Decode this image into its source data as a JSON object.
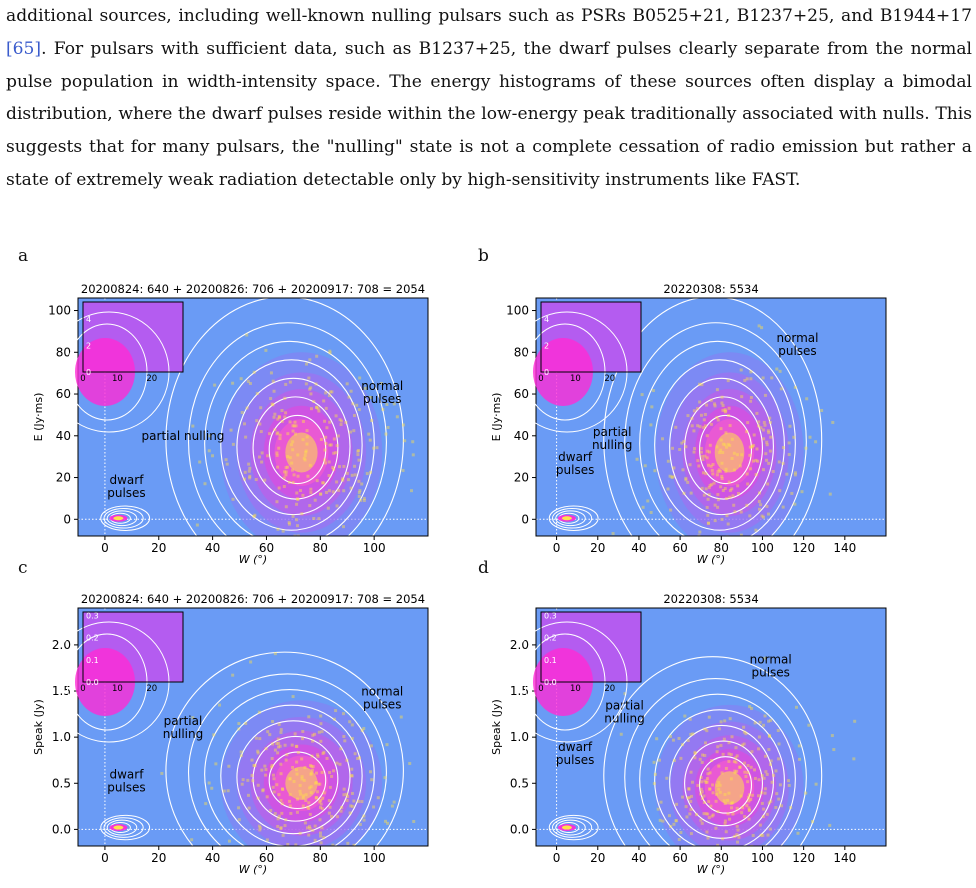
{
  "paragraph": {
    "lines": [
      "additional sources, including well-known nulling pulsars such as PSRs B0525+21, B1237+25, and B1944+17",
      "|. For pulsars with sufficient data, such as B1237+25, the dwarf pulses clearly separate from the normal",
      "pulse population in width-intensity space. The energy histograms of these sources often display a bimodal",
      "distribution, where the dwarf pulses reside within the low-energy peak traditionally associated with nulls. This",
      "suggests that for many pulsars, the \"nulling\" state is not a complete cessation of radio emission but rather a",
      "state of extremely weak radiation detectable only by high-sensitivity instruments like FAST."
    ],
    "citation": "[65]"
  },
  "colors": {
    "background": "#6a9bf5",
    "contour": "#ffffff",
    "hot": "#ff2bd6",
    "core": "#ffe14a",
    "citation": "#3b5ccc"
  },
  "chart_data": [
    {
      "panel": "a",
      "type": "scatter",
      "title": "20200824: 640 + 20200826: 706 + 20200917: 708 = 2054",
      "xlabel": "W (°)",
      "ylabel": "E (Jy·ms)",
      "xlim": [
        -10,
        120
      ],
      "ylim": [
        -8,
        106
      ],
      "xticks": [
        0,
        20,
        40,
        60,
        80,
        100
      ],
      "yticks": [
        0,
        20,
        40,
        60,
        80,
        100
      ],
      "annotations": [
        {
          "text": "normal\npulses",
          "x": 103,
          "y": 62
        },
        {
          "text": "partial nulling",
          "x": 29,
          "y": 38
        },
        {
          "text": "dwarf\npulses",
          "x": 8,
          "y": 17
        }
      ],
      "clusters": [
        {
          "name": "",
          "cx": 73,
          "cy": 32,
          "sx": 10,
          "sy": 16
        },
        {
          "name": "",
          "cx": 5,
          "cy": 0.5,
          "sx": 4,
          "sy": 1.5
        }
      ],
      "inset": {
        "xlim": [
          0,
          25
        ],
        "ylim": [
          0,
          5
        ],
        "xticks": [
          0,
          10,
          20
        ],
        "yticks": [
          0,
          2,
          4
        ]
      }
    },
    {
      "panel": "b",
      "type": "scatter",
      "title": "20220308: 5534",
      "xlabel": "W (°)",
      "ylabel": "E (Jy·ms)",
      "xlim": [
        -10,
        160
      ],
      "ylim": [
        -8,
        106
      ],
      "xticks": [
        0,
        20,
        40,
        60,
        80,
        100,
        120,
        140
      ],
      "yticks": [
        0,
        20,
        40,
        60,
        80,
        100
      ],
      "annotations": [
        {
          "text": "normal\npulses",
          "x": 117,
          "y": 85
        },
        {
          "text": "partial\nnulling",
          "x": 27,
          "y": 40
        },
        {
          "text": "dwarf\npulses",
          "x": 9,
          "y": 28
        }
      ],
      "clusters": [
        {
          "name": "",
          "cx": 84,
          "cy": 32,
          "sx": 12,
          "sy": 16
        },
        {
          "name": "",
          "cx": 5,
          "cy": 0.5,
          "sx": 4,
          "sy": 1.5
        }
      ],
      "inset": {
        "xlim": [
          0,
          25
        ],
        "ylim": [
          0,
          5
        ],
        "xticks": [
          0,
          10,
          20
        ],
        "yticks": [
          0,
          2,
          4
        ]
      }
    },
    {
      "panel": "c",
      "type": "scatter",
      "title": "20200824: 640 + 20200826: 706 + 20200917: 708 = 2054",
      "xlabel": "W (°)",
      "ylabel": "Speak (Jy)",
      "xlim": [
        -10,
        120
      ],
      "ylim": [
        -0.18,
        2.4
      ],
      "xticks": [
        0,
        20,
        40,
        60,
        80,
        100
      ],
      "yticks": [
        0.0,
        0.5,
        1.0,
        1.5,
        2.0
      ],
      "annotations": [
        {
          "text": "normal\npulses",
          "x": 103,
          "y": 1.45
        },
        {
          "text": "partial\nnulling",
          "x": 29,
          "y": 1.13
        },
        {
          "text": "dwarf\npulses",
          "x": 8,
          "y": 0.55
        }
      ],
      "clusters": [
        {
          "name": "",
          "cx": 73,
          "cy": 0.5,
          "sx": 10,
          "sy": 0.3
        },
        {
          "name": "",
          "cx": 5,
          "cy": 0.02,
          "sx": 4,
          "sy": 0.03
        }
      ],
      "inset": {
        "xlim": [
          0,
          25
        ],
        "ylim": [
          0,
          0.3
        ],
        "xticks": [
          0,
          10,
          20
        ],
        "yticks": [
          0.0,
          0.1,
          0.2,
          0.3
        ]
      }
    },
    {
      "panel": "d",
      "type": "scatter",
      "title": "20220308: 5534",
      "xlabel": "W (°)",
      "ylabel": "Speak (Jy)",
      "xlim": [
        -10,
        160
      ],
      "ylim": [
        -0.18,
        2.4
      ],
      "xticks": [
        0,
        20,
        40,
        60,
        80,
        100,
        120,
        140
      ],
      "yticks": [
        0.0,
        0.5,
        1.0,
        1.5,
        2.0
      ],
      "annotations": [
        {
          "text": "normal\npulses",
          "x": 104,
          "y": 1.8
        },
        {
          "text": "partial\nnulling",
          "x": 33,
          "y": 1.3
        },
        {
          "text": "dwarf\npulses",
          "x": 9,
          "y": 0.85
        }
      ],
      "clusters": [
        {
          "name": "",
          "cx": 84,
          "cy": 0.45,
          "sx": 12,
          "sy": 0.3
        },
        {
          "name": "",
          "cx": 5,
          "cy": 0.02,
          "sx": 4,
          "sy": 0.03
        }
      ],
      "inset": {
        "xlim": [
          0,
          25
        ],
        "ylim": [
          0,
          0.3
        ],
        "xticks": [
          0,
          10,
          20
        ],
        "yticks": [
          0.0,
          0.1,
          0.2,
          0.3
        ]
      }
    }
  ]
}
